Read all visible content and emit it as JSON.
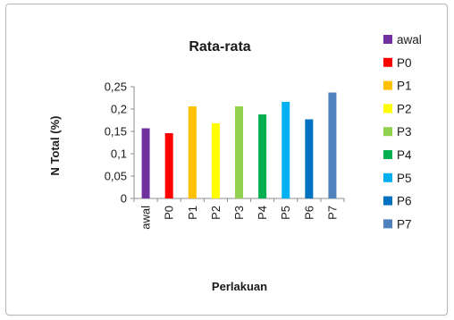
{
  "chart_data": {
    "type": "bar",
    "title": "Rata-rata",
    "xlabel": "Perlakuan",
    "ylabel": "N Total (%)",
    "ylim": [
      0,
      0.25
    ],
    "yticks": [
      "0",
      "0,05",
      "0,1",
      "0,15",
      "0,2",
      "0,25"
    ],
    "grid": false,
    "legend_position": "right",
    "categories": [
      "awal",
      "P0",
      "P1",
      "P2",
      "P3",
      "P4",
      "P5",
      "P6",
      "P7"
    ],
    "values": [
      0.157,
      0.146,
      0.206,
      0.168,
      0.206,
      0.188,
      0.216,
      0.177,
      0.237
    ],
    "colors": [
      "#7030a0",
      "#ff0000",
      "#ffc000",
      "#ffff00",
      "#92d050",
      "#00b050",
      "#00b0f0",
      "#0070c0",
      "#4f81bd"
    ]
  }
}
